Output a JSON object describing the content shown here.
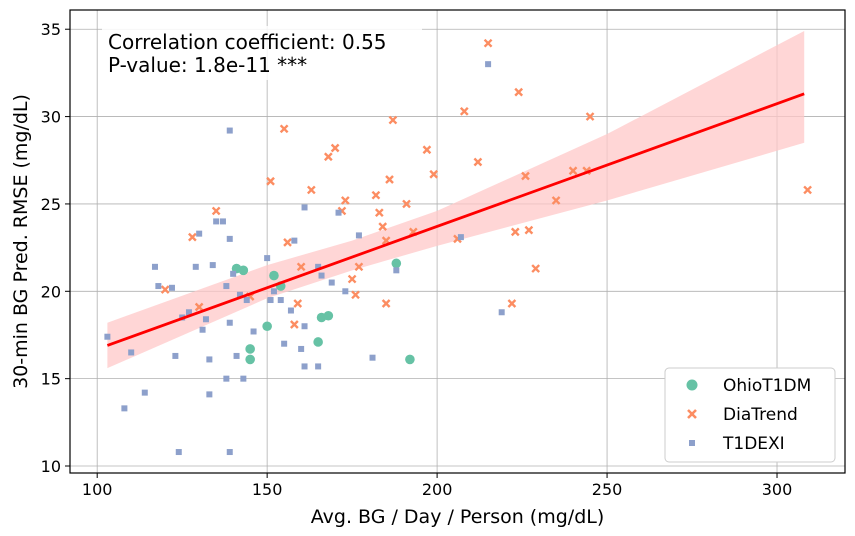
{
  "chart_data": {
    "type": "scatter",
    "xlabel": "Avg. BG / Day / Person (mg/dL)",
    "ylabel": "30-min BG Pred. RMSE (mg/dL)",
    "xlim": [
      92,
      320
    ],
    "ylim": [
      9.6,
      36.1
    ],
    "xticks": [
      100,
      150,
      200,
      250,
      300
    ],
    "yticks": [
      10,
      15,
      20,
      25,
      30,
      35
    ],
    "grid": true,
    "legend_position": "bottom-right",
    "annotation": [
      "Correlation coefficient: 0.55",
      "P-value: 1.8e-11 ***"
    ],
    "regression": {
      "color": "#ff0000",
      "band_color": "#ffc8c8",
      "points": [
        [
          103,
          16.9
        ],
        [
          308,
          31.3
        ]
      ],
      "band_upper": [
        [
          103,
          18.2
        ],
        [
          150,
          21.5
        ],
        [
          175,
          22.9
        ],
        [
          200,
          24.6
        ],
        [
          250,
          29.0
        ],
        [
          308,
          34.9
        ]
      ],
      "band_lower": [
        [
          103,
          15.6
        ],
        [
          150,
          19.6
        ],
        [
          175,
          21.2
        ],
        [
          200,
          22.6
        ],
        [
          250,
          25.2
        ],
        [
          308,
          28.5
        ]
      ]
    },
    "series": [
      {
        "name": "OhioT1DM",
        "marker": "circle",
        "color": "#66c2a5",
        "points": [
          [
            141,
            21.3
          ],
          [
            143,
            21.2
          ],
          [
            145,
            16.7
          ],
          [
            145,
            16.1
          ],
          [
            150,
            18.0
          ],
          [
            152,
            20.9
          ],
          [
            154,
            20.3
          ],
          [
            165,
            17.1
          ],
          [
            166,
            18.5
          ],
          [
            168,
            18.6
          ],
          [
            188,
            21.6
          ],
          [
            192,
            16.1
          ]
        ]
      },
      {
        "name": "DiaTrend",
        "marker": "x",
        "color": "#fc8d62",
        "points": [
          [
            120,
            20.1
          ],
          [
            128,
            23.1
          ],
          [
            130,
            19.1
          ],
          [
            135,
            24.6
          ],
          [
            145,
            19.7
          ],
          [
            151,
            26.3
          ],
          [
            155,
            29.3
          ],
          [
            156,
            22.8
          ],
          [
            158,
            18.1
          ],
          [
            159,
            19.3
          ],
          [
            160,
            21.4
          ],
          [
            163,
            25.8
          ],
          [
            168,
            27.7
          ],
          [
            170,
            28.2
          ],
          [
            172,
            24.6
          ],
          [
            173,
            25.2
          ],
          [
            175,
            20.7
          ],
          [
            176,
            19.8
          ],
          [
            177,
            21.4
          ],
          [
            182,
            25.5
          ],
          [
            183,
            24.5
          ],
          [
            184,
            23.7
          ],
          [
            185,
            22.9
          ],
          [
            185,
            19.3
          ],
          [
            186,
            26.4
          ],
          [
            187,
            29.8
          ],
          [
            191,
            25.0
          ],
          [
            193,
            23.4
          ],
          [
            197,
            28.1
          ],
          [
            199,
            26.7
          ],
          [
            206,
            23.0
          ],
          [
            208,
            30.3
          ],
          [
            212,
            27.4
          ],
          [
            215,
            34.2
          ],
          [
            222,
            19.3
          ],
          [
            223,
            23.4
          ],
          [
            224,
            31.4
          ],
          [
            226,
            26.6
          ],
          [
            227,
            23.5
          ],
          [
            229,
            21.3
          ],
          [
            235,
            25.2
          ],
          [
            240,
            26.9
          ],
          [
            244,
            26.9
          ],
          [
            245,
            30.0
          ],
          [
            309,
            25.8
          ]
        ]
      },
      {
        "name": "T1DEXI",
        "marker": "square",
        "color": "#8da0cb",
        "points": [
          [
            103,
            17.4
          ],
          [
            108,
            13.3
          ],
          [
            110,
            16.5
          ],
          [
            114,
            14.2
          ],
          [
            117,
            21.4
          ],
          [
            118,
            20.3
          ],
          [
            122,
            20.2
          ],
          [
            123,
            16.3
          ],
          [
            124,
            10.8
          ],
          [
            125,
            18.5
          ],
          [
            127,
            18.8
          ],
          [
            129,
            21.4
          ],
          [
            130,
            23.3
          ],
          [
            131,
            17.8
          ],
          [
            132,
            18.4
          ],
          [
            133,
            16.1
          ],
          [
            133,
            14.1
          ],
          [
            134,
            21.5
          ],
          [
            135,
            24.0
          ],
          [
            137,
            24.0
          ],
          [
            138,
            15.0
          ],
          [
            138,
            20.3
          ],
          [
            139,
            18.2
          ],
          [
            139,
            29.2
          ],
          [
            139,
            23.0
          ],
          [
            139,
            10.8
          ],
          [
            140,
            21.0
          ],
          [
            141,
            16.3
          ],
          [
            142,
            19.8
          ],
          [
            143,
            15.0
          ],
          [
            144,
            19.5
          ],
          [
            146,
            17.7
          ],
          [
            150,
            21.9
          ],
          [
            151,
            19.5
          ],
          [
            152,
            20.0
          ],
          [
            154,
            19.5
          ],
          [
            155,
            17.0
          ],
          [
            157,
            18.9
          ],
          [
            158,
            22.9
          ],
          [
            160,
            16.7
          ],
          [
            161,
            18.0
          ],
          [
            161,
            15.7
          ],
          [
            161,
            24.8
          ],
          [
            165,
            21.4
          ],
          [
            165,
            15.7
          ],
          [
            166,
            20.9
          ],
          [
            169,
            20.5
          ],
          [
            171,
            24.5
          ],
          [
            173,
            20.0
          ],
          [
            177,
            23.2
          ],
          [
            181,
            16.2
          ],
          [
            188,
            21.2
          ],
          [
            207,
            23.1
          ],
          [
            219,
            18.8
          ],
          [
            215,
            33.0
          ]
        ]
      }
    ]
  }
}
